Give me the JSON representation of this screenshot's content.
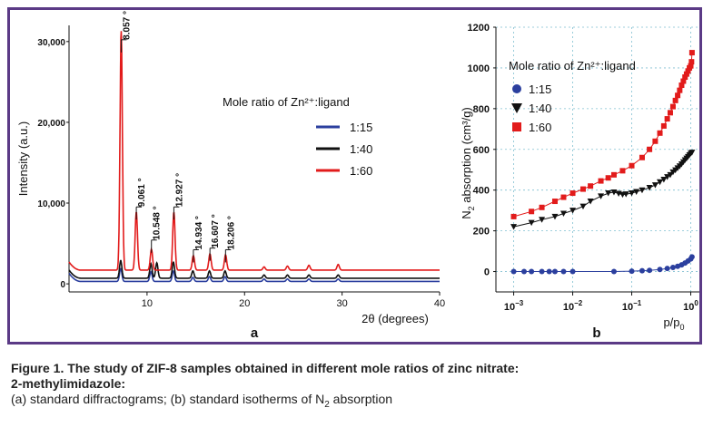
{
  "figure": {
    "panel_a_letter": "a",
    "panel_b_letter": "b"
  },
  "caption": {
    "title_line1": "Figure 1. The study of ZIF-8 samples obtained in different mole ratios of zinc nitrate:",
    "title_line2": "2-methylimidazole:",
    "desc_pre": "(a) standard diffractograms; (b) standard isotherms of N",
    "desc_sub": "2",
    "desc_post": " absorption"
  },
  "colors": {
    "frame": "#5b3a86",
    "series_1_15": "#2b3f9e",
    "series_1_40": "#111111",
    "series_1_60": "#e21b1b",
    "grid": "#7fbfd0"
  },
  "chart_data": [
    {
      "type": "line",
      "panel": "a",
      "xlabel": "2θ (degrees)",
      "ylabel": "Intensity (a.u.)",
      "xlim": [
        2,
        40
      ],
      "ylim": [
        -1000,
        32000
      ],
      "x_ticks": [
        10,
        20,
        30,
        40
      ],
      "y_ticks": [
        {
          "value": 0,
          "label": "0"
        },
        {
          "value": 10000,
          "label": "10,000"
        },
        {
          "value": 20000,
          "label": "20,000"
        },
        {
          "value": 30000,
          "label": "30,000"
        }
      ],
      "legend_title": "Mole ratio of Zn²⁺:ligand",
      "legend_placement": "top-right",
      "series": [
        {
          "name": "1:15",
          "color": "#2b3f9e",
          "baseline": 300,
          "peaks": [
            [
              7.3,
              1600
            ],
            [
              10.4,
              1200
            ],
            [
              12.7,
              1300
            ],
            [
              14.7,
              500
            ],
            [
              16.4,
              600
            ],
            [
              18.0,
              600
            ],
            [
              22.0,
              300
            ],
            [
              24.4,
              300
            ],
            [
              26.6,
              300
            ],
            [
              29.6,
              300
            ]
          ]
        },
        {
          "name": "1:40",
          "color": "#111111",
          "baseline": 700,
          "peaks": [
            [
              7.3,
              2200
            ],
            [
              10.4,
              1800
            ],
            [
              11.0,
              1900
            ],
            [
              12.7,
              2000
            ],
            [
              14.7,
              900
            ],
            [
              16.4,
              900
            ],
            [
              18.0,
              900
            ],
            [
              22.0,
              400
            ],
            [
              24.4,
              400
            ],
            [
              26.6,
              400
            ],
            [
              29.6,
              400
            ]
          ]
        },
        {
          "name": "1:60",
          "color": "#e21b1b",
          "baseline": 1700,
          "peaks": [
            [
              7.35,
              29700
            ],
            [
              8.9,
              7200
            ],
            [
              10.45,
              2600
            ],
            [
              12.75,
              7200
            ],
            [
              14.75,
              1800
            ],
            [
              16.45,
              2000
            ],
            [
              18.05,
              1900
            ],
            [
              22.0,
              400
            ],
            [
              24.4,
              500
            ],
            [
              26.6,
              600
            ],
            [
              29.6,
              700
            ]
          ]
        }
      ],
      "annotations": [
        {
          "text": "8.057 °",
          "x": 7.35,
          "y": 30000
        },
        {
          "text": "9.061 °",
          "x": 8.9,
          "y": 9300
        },
        {
          "text": "10.548 °",
          "x": 10.45,
          "y": 5200
        },
        {
          "text": "12.927 °",
          "x": 12.75,
          "y": 9300
        },
        {
          "text": "14.934 °",
          "x": 14.75,
          "y": 4000
        },
        {
          "text": "16.607 °",
          "x": 16.45,
          "y": 4200
        },
        {
          "text": "18.206 °",
          "x": 18.05,
          "y": 4000
        }
      ]
    },
    {
      "type": "scatter",
      "panel": "b",
      "xscale": "log",
      "xlabel_base": "p/p",
      "xlabel_sub": "0",
      "ylabel_pre": "N",
      "ylabel_sub": "2",
      "ylabel_post": " absorption (cm³/g)",
      "xlim": [
        0.0005,
        1.4
      ],
      "ylim": [
        -100,
        1200
      ],
      "x_ticks": [
        {
          "value": 0.001,
          "base": "10",
          "exp": "−3"
        },
        {
          "value": 0.01,
          "base": "10",
          "exp": "−2"
        },
        {
          "value": 0.1,
          "base": "10",
          "exp": "−1"
        },
        {
          "value": 1,
          "base": "10",
          "exp": "0"
        }
      ],
      "y_ticks": [
        0,
        200,
        400,
        600,
        800,
        1000,
        1200
      ],
      "grid": true,
      "legend_title": "Mole ratio of Zn²⁺:ligand",
      "legend_placement": "top-left",
      "series": [
        {
          "name": "1:15",
          "color": "#2b3f9e",
          "marker": "circle",
          "x": [
            0.001,
            0.0015,
            0.002,
            0.003,
            0.004,
            0.005,
            0.007,
            0.01,
            0.05,
            0.1,
            0.15,
            0.2,
            0.3,
            0.4,
            0.5,
            0.6,
            0.7,
            0.8,
            0.9,
            1.0,
            1.05
          ],
          "y": [
            0,
            0,
            0,
            0,
            0,
            0,
            0,
            0,
            0,
            2,
            4,
            6,
            10,
            15,
            20,
            26,
            33,
            42,
            52,
            62,
            72
          ]
        },
        {
          "name": "1:40",
          "color": "#111111",
          "marker": "triangle",
          "x": [
            0.001,
            0.002,
            0.003,
            0.005,
            0.007,
            0.01,
            0.015,
            0.02,
            0.03,
            0.04,
            0.05,
            0.06,
            0.07,
            0.08,
            0.1,
            0.12,
            0.15,
            0.2,
            0.25,
            0.3,
            0.35,
            0.4,
            0.45,
            0.5,
            0.55,
            0.6,
            0.65,
            0.7,
            0.75,
            0.8,
            0.85,
            0.9,
            0.95,
            1.0,
            1.05
          ],
          "y": [
            220,
            240,
            255,
            270,
            285,
            300,
            320,
            345,
            370,
            385,
            390,
            383,
            378,
            380,
            385,
            392,
            400,
            412,
            425,
            440,
            452,
            465,
            475,
            488,
            498,
            508,
            518,
            528,
            538,
            548,
            556,
            564,
            572,
            580,
            585
          ]
        },
        {
          "name": "1:60",
          "color": "#e21b1b",
          "marker": "square",
          "x": [
            0.001,
            0.002,
            0.003,
            0.005,
            0.007,
            0.01,
            0.015,
            0.02,
            0.03,
            0.04,
            0.05,
            0.07,
            0.1,
            0.15,
            0.2,
            0.25,
            0.3,
            0.35,
            0.4,
            0.45,
            0.5,
            0.55,
            0.6,
            0.65,
            0.7,
            0.75,
            0.8,
            0.85,
            0.9,
            0.95,
            1.0,
            1.03,
            1.05
          ],
          "y": [
            270,
            295,
            315,
            345,
            365,
            385,
            405,
            420,
            445,
            460,
            475,
            495,
            520,
            560,
            600,
            640,
            680,
            715,
            750,
            780,
            810,
            840,
            865,
            890,
            915,
            935,
            955,
            970,
            985,
            1000,
            1010,
            1030,
            1075
          ]
        }
      ]
    }
  ]
}
